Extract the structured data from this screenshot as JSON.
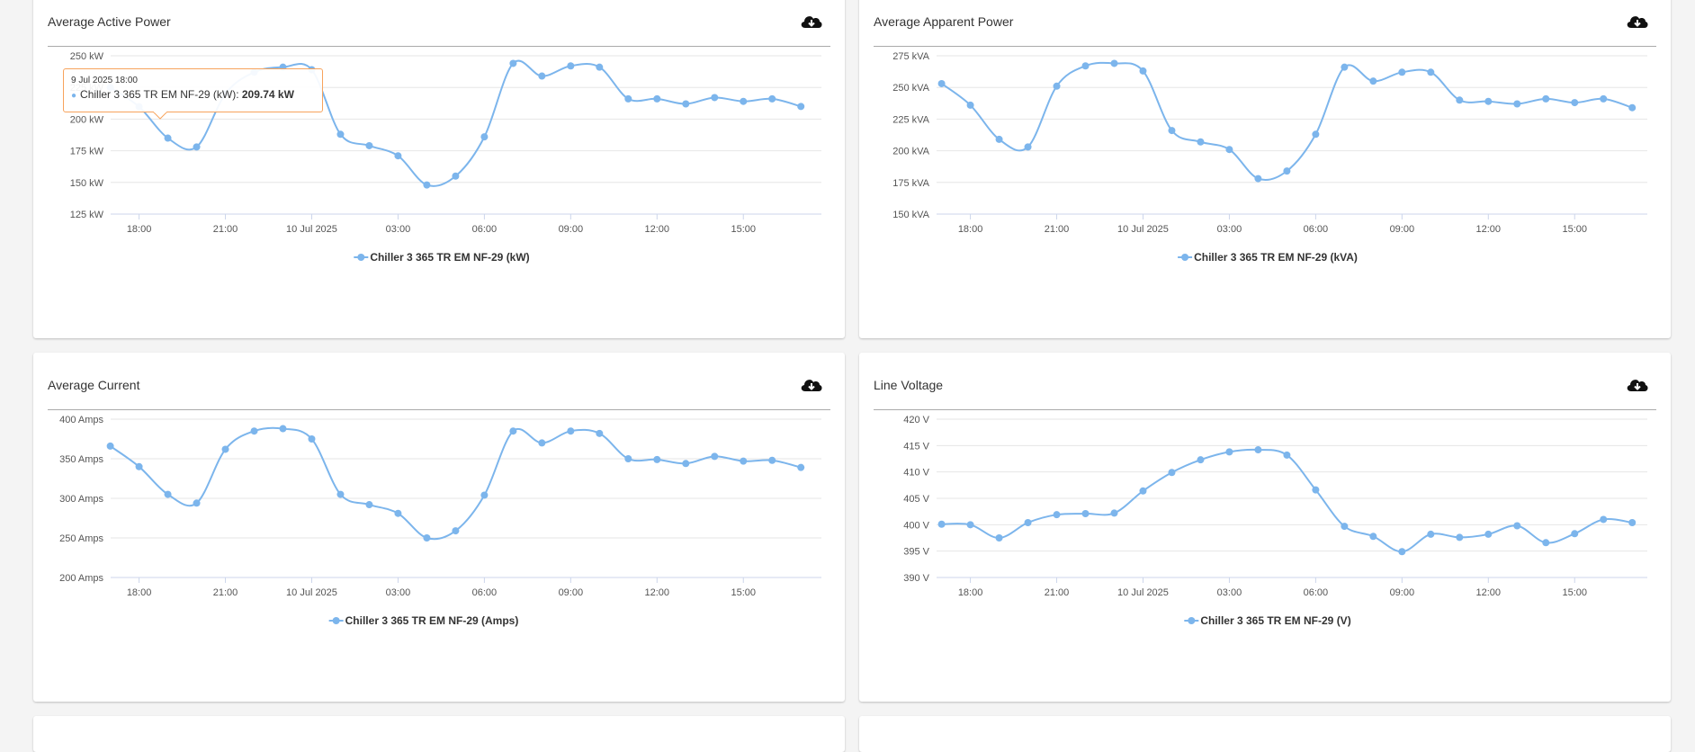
{
  "colors": {
    "series": "#7cb5ec",
    "tooltip_border": "#f7a35c"
  },
  "download_icon": "cloud-download-icon",
  "x_ticks": [
    "18:00",
    "21:00",
    "10 Jul 2025",
    "03:00",
    "06:00",
    "09:00",
    "12:00",
    "15:00"
  ],
  "tooltip": {
    "date": "9 Jul 2025 18:00",
    "series": "Chiller 3 365 TR EM NF-29 (kW):",
    "value": "209.74 kW"
  },
  "chart_data": [
    {
      "type": "line",
      "title": "Average Active Power",
      "legend": "Chiller 3 365 TR EM NF-29 (kW)",
      "unit": "kW",
      "x": [
        "17:00",
        "18:00",
        "19:00",
        "20:00",
        "21:00",
        "22:00",
        "23:00",
        "00:00",
        "01:00",
        "02:00",
        "03:00",
        "04:00",
        "05:00",
        "06:00",
        "07:00",
        "08:00",
        "09:00",
        "10:00",
        "11:00",
        "12:00",
        "13:00",
        "14:00",
        "15:00",
        "16:00",
        "17:00"
      ],
      "values": [
        225,
        209.74,
        185,
        178,
        220,
        237,
        241,
        239,
        188,
        179,
        171,
        148,
        155,
        186,
        244,
        234,
        242,
        241,
        216,
        216,
        212,
        217,
        214,
        216,
        210
      ],
      "ylim": [
        125,
        250
      ],
      "yticks": [
        125,
        150,
        175,
        200,
        225,
        250
      ],
      "ytick_labels": [
        "125 kW",
        "150 kW",
        "175 kW",
        "200 kW",
        "225 kW",
        "250 kW"
      ]
    },
    {
      "type": "line",
      "title": "Average Apparent Power",
      "legend": "Chiller 3 365 TR EM NF-29 (kVA)",
      "unit": "kVA",
      "x": [
        "17:00",
        "18:00",
        "19:00",
        "20:00",
        "21:00",
        "22:00",
        "23:00",
        "00:00",
        "01:00",
        "02:00",
        "03:00",
        "04:00",
        "05:00",
        "06:00",
        "07:00",
        "08:00",
        "09:00",
        "10:00",
        "11:00",
        "12:00",
        "13:00",
        "14:00",
        "15:00",
        "16:00",
        "17:00"
      ],
      "values": [
        253,
        236,
        209,
        203,
        251,
        267,
        269,
        263,
        216,
        207,
        201,
        178,
        184,
        213,
        266,
        255,
        262,
        262,
        240,
        239,
        237,
        241,
        238,
        241,
        234
      ],
      "ylim": [
        150,
        275
      ],
      "yticks": [
        150,
        175,
        200,
        225,
        250,
        275
      ],
      "ytick_labels": [
        "150 kVA",
        "175 kVA",
        "200 kVA",
        "225 kVA",
        "250 kVA",
        "275 kVA"
      ]
    },
    {
      "type": "line",
      "title": "Average Current",
      "legend": "Chiller 3 365 TR EM NF-29 (Amps)",
      "unit": "Amps",
      "x": [
        "17:00",
        "18:00",
        "19:00",
        "20:00",
        "21:00",
        "22:00",
        "23:00",
        "00:00",
        "01:00",
        "02:00",
        "03:00",
        "04:00",
        "05:00",
        "06:00",
        "07:00",
        "08:00",
        "09:00",
        "10:00",
        "11:00",
        "12:00",
        "13:00",
        "14:00",
        "15:00",
        "16:00",
        "17:00"
      ],
      "values": [
        366,
        340,
        305,
        294,
        362,
        385,
        388,
        375,
        305,
        292,
        281,
        250,
        259,
        304,
        385,
        370,
        385,
        382,
        350,
        349,
        344,
        353,
        347,
        348,
        339
      ],
      "ylim": [
        200,
        400
      ],
      "yticks": [
        200,
        250,
        300,
        350,
        400
      ],
      "ytick_labels": [
        "200 Amps",
        "250 Amps",
        "300 Amps",
        "350 Amps",
        "400 Amps"
      ]
    },
    {
      "type": "line",
      "title": "Line Voltage",
      "legend": "Chiller 3 365 TR EM NF-29 (V)",
      "unit": "V",
      "x": [
        "17:00",
        "18:00",
        "19:00",
        "20:00",
        "21:00",
        "22:00",
        "23:00",
        "00:00",
        "01:00",
        "02:00",
        "03:00",
        "04:00",
        "05:00",
        "06:00",
        "07:00",
        "08:00",
        "09:00",
        "10:00",
        "11:00",
        "12:00",
        "13:00",
        "14:00",
        "15:00",
        "16:00",
        "17:00"
      ],
      "values": [
        400.1,
        400,
        397.5,
        400.4,
        401.9,
        402.1,
        402.2,
        406.4,
        409.9,
        412.3,
        413.8,
        414.2,
        413.2,
        406.6,
        399.7,
        397.8,
        394.9,
        398.2,
        397.6,
        398.2,
        399.8,
        396.6,
        398.3,
        401,
        400.4
      ],
      "ylim": [
        390,
        420
      ],
      "yticks": [
        390,
        395,
        400,
        405,
        410,
        415,
        420
      ],
      "ytick_labels": [
        "390 V",
        "395 V",
        "400 V",
        "405 V",
        "410 V",
        "415 V",
        "420 V"
      ]
    }
  ]
}
